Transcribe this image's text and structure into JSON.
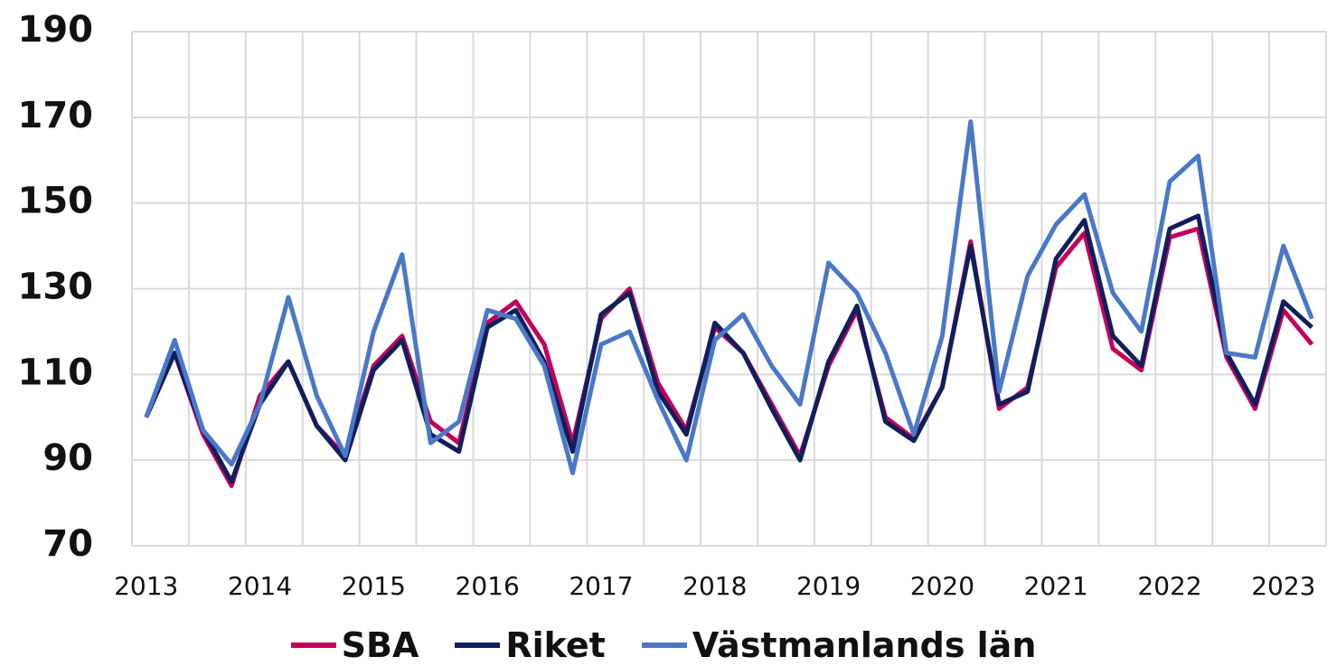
{
  "chart_data": {
    "type": "line",
    "categories": [
      "2013",
      null,
      null,
      null,
      "2014",
      null,
      null,
      null,
      "2015",
      null,
      null,
      null,
      "2016",
      null,
      null,
      null,
      "2017",
      null,
      null,
      null,
      "2018",
      null,
      null,
      null,
      "2019",
      null,
      null,
      null,
      "2020",
      null,
      null,
      null,
      "2021",
      null,
      null,
      null,
      "2022",
      null,
      null,
      null,
      "2023",
      null
    ],
    "series": [
      {
        "name": "SBA",
        "color": "#c4005a",
        "values": [
          100,
          115,
          96,
          84,
          105,
          113,
          98,
          91,
          112,
          119,
          99,
          94,
          122,
          127,
          117,
          94,
          123,
          130,
          108,
          97,
          121,
          115,
          103,
          91,
          112,
          125,
          100,
          95,
          107,
          141,
          102,
          107,
          135,
          143,
          116,
          111,
          142,
          144,
          114,
          102,
          125,
          117
        ]
      },
      {
        "name": "Riket",
        "color": "#0f1f5c",
        "values": [
          100,
          115,
          97,
          85,
          103,
          113,
          98,
          90,
          111,
          118,
          96,
          92,
          121,
          125,
          113,
          92,
          124,
          129,
          106,
          96,
          122,
          115,
          102,
          90,
          113,
          126,
          99,
          94.5,
          107,
          140,
          103,
          106,
          137,
          146,
          119,
          112,
          144,
          147,
          115,
          103,
          127,
          121
        ]
      },
      {
        "name": "Västmanlands län",
        "color": "#4a78c8",
        "values": [
          100,
          118,
          97,
          89,
          103,
          128,
          105,
          91,
          120,
          138,
          94,
          99,
          125,
          123,
          112,
          87,
          117,
          120,
          104,
          90,
          118,
          124,
          112,
          103,
          136,
          129,
          115,
          96,
          119,
          169,
          106,
          133,
          145,
          152,
          129,
          120,
          155,
          161,
          115,
          114,
          140,
          123
        ]
      }
    ],
    "ylim": [
      70,
      190
    ],
    "yticks": [
      70,
      90,
      110,
      130,
      150,
      170,
      190
    ],
    "grid": true
  }
}
